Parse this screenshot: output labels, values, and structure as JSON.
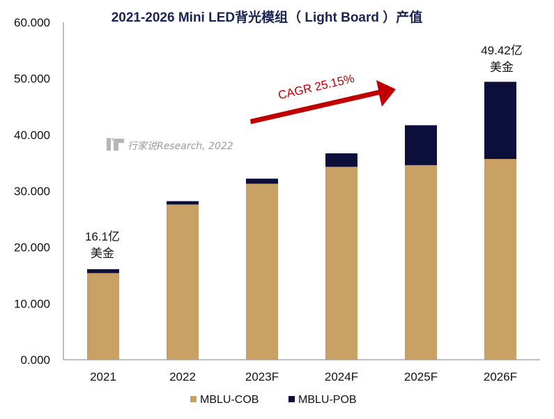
{
  "title": "2021-2026 Mini LED背光模组（ Light Board ）产值",
  "colors": {
    "cob": "#C9A063",
    "pob": "#0B0F3A",
    "title": "#1A2454",
    "arrow": "#C00000",
    "axis": "#7F7F7F",
    "watermark": "#9A9A9A"
  },
  "cagr_label": "CAGR 25.15%",
  "watermark": {
    "logo_icon": "xingjiashuo-logo-icon",
    "text": "行家说Research, 2022"
  },
  "annotations": {
    "first_line1": "16.1亿",
    "first_line2": "美金",
    "last_line1": "49.42亿",
    "last_line2": "美金"
  },
  "chart_data": {
    "type": "bar",
    "stacked": true,
    "title": "2021-2026 Mini LED背光模组（ Light Board ）产值",
    "categories": [
      "2021",
      "2022",
      "2023F",
      "2024F",
      "2025F",
      "2026F"
    ],
    "series": [
      {
        "name": "MBLU-COB",
        "values": [
          15.4,
          27.6,
          31.3,
          34.3,
          34.6,
          35.7
        ]
      },
      {
        "name": "MBLU-POB",
        "values": [
          0.7,
          0.6,
          0.9,
          2.4,
          7.1,
          13.72
        ]
      }
    ],
    "y_ticks": [
      "0.000",
      "10.000",
      "20.000",
      "30.000",
      "40.000",
      "50.000",
      "60.000"
    ],
    "ylim": [
      0,
      60
    ],
    "xlabel": "",
    "ylabel": "",
    "grid": false,
    "legend": [
      "MBLU-COB",
      "MBLU-POB"
    ],
    "legend_position": "bottom-center"
  }
}
